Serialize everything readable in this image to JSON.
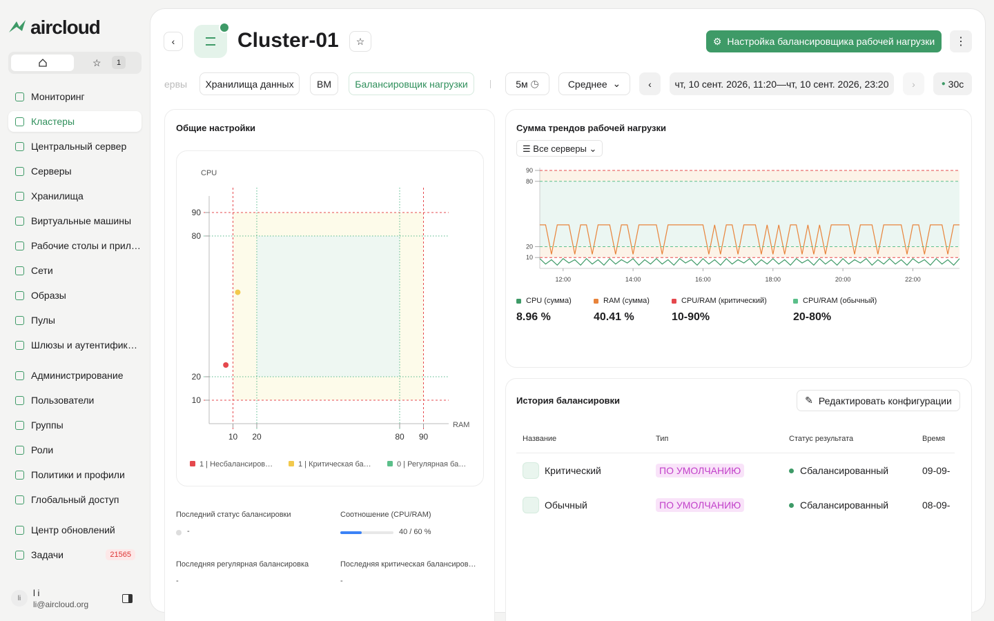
{
  "sidebar": {
    "logo": "aircloud",
    "favorites_count": 1,
    "nav": [
      [
        "Мониторинг",
        "Кластеры",
        "Центральный сервер",
        "Серверы",
        "Хранилища",
        "Виртуальные машины",
        "Рабочие столы и прил…",
        "Сети",
        "Образы",
        "Пулы",
        "Шлюзы и аутентифика…"
      ],
      [
        "Администрирование",
        "Пользователи",
        "Группы",
        "Роли",
        "Политики и профили",
        "Глобальный доступ"
      ],
      [
        "Центр обновлений",
        "Задачи"
      ]
    ],
    "active": "Кластеры",
    "tasks_badge": 21565,
    "user": {
      "avatar": "li",
      "name": "l i",
      "email": "li@aircloud.org"
    }
  },
  "header": {
    "title": "Cluster-01",
    "button": "Настройка балансировщика рабочей нагрузки"
  },
  "tabs": {
    "items": [
      "ервы",
      "Хранилища данных",
      "ВМ",
      "Балансировщик нагрузки"
    ],
    "active": "Балансировщик нагрузки"
  },
  "toolbar": {
    "interval": "5м",
    "aggregate": "Среднее",
    "range": "чт, 10 сент. 2026, 11:20—чт, 10 сент. 2026, 23:20",
    "refresh": "30с"
  },
  "general": {
    "title": "Общие настройки",
    "fields": [
      {
        "label": "Последний статус балансировки",
        "value": "-"
      },
      {
        "label": "Соотношение (CPU/RAM)",
        "value": "40 / 60 %",
        "ratio": 40
      },
      {
        "label": "Последняя регулярная балансировка",
        "value": "-"
      },
      {
        "label": "Последняя критическая балансиров…",
        "value": "-"
      }
    ]
  },
  "trend": {
    "title": "Сумма трендов рабочей нагрузки",
    "filter": "Все серверы"
  },
  "history": {
    "title": "История балансировки",
    "button": "Редактировать конфигурации",
    "columns": [
      "Название",
      "Тип",
      "Статус результата",
      "Время"
    ],
    "rows": [
      [
        "Критический",
        "ПО УМОЛЧАНИЮ",
        "Сбалансированный",
        "09-09-"
      ],
      [
        "Обычный",
        "ПО УМОЛЧАНИЮ",
        "Сбалансированный",
        "08-09-"
      ]
    ]
  },
  "chart_data": [
    {
      "type": "scatter",
      "ylabel": "CPU",
      "xlabel": "RAM",
      "xlim": [
        0,
        100
      ],
      "ylim": [
        0,
        100
      ],
      "xticks": [
        10,
        20,
        80,
        90
      ],
      "yticks": [
        10,
        20,
        80,
        90
      ],
      "thresholds": [
        {
          "range": [
            10,
            90
          ],
          "color": "#e5484d"
        },
        {
          "range": [
            20,
            80
          ],
          "color": "#52b788"
        }
      ],
      "series": [
        {
          "name": "1 | Несбалансиров…",
          "color": "#e5484d",
          "x": [
            7
          ],
          "values": [
            25
          ]
        },
        {
          "name": "1 | Критическая ба…",
          "color": "#f2c94c",
          "x": [
            12
          ],
          "values": [
            56
          ]
        },
        {
          "name": "0 | Регулярная ба…",
          "color": "#5bbf8a",
          "x": [],
          "values": []
        }
      ]
    },
    {
      "type": "line",
      "xlim": [
        680,
        1400
      ],
      "ylim": [
        0,
        90
      ],
      "yticks": [
        10,
        20,
        80,
        90
      ],
      "xticks": [
        {
          "value": 720,
          "label": "12:00"
        },
        {
          "value": 840,
          "label": "14:00"
        },
        {
          "value": 960,
          "label": "16:00"
        },
        {
          "value": 1080,
          "label": "18:00"
        },
        {
          "value": 1200,
          "label": "20:00"
        },
        {
          "value": 1320,
          "label": "22:00"
        }
      ],
      "x": [
        680,
        690,
        700,
        710,
        720,
        730,
        740,
        750,
        760,
        770,
        780,
        790,
        800,
        810,
        820,
        830,
        840,
        850,
        860,
        870,
        880,
        890,
        900,
        910,
        920,
        930,
        940,
        950,
        960,
        970,
        980,
        990,
        1000,
        1010,
        1020,
        1030,
        1040,
        1050,
        1060,
        1070,
        1080,
        1090,
        1100,
        1110,
        1120,
        1130,
        1140,
        1150,
        1160,
        1170,
        1180,
        1190,
        1200,
        1210,
        1220,
        1230,
        1240,
        1250,
        1260,
        1270,
        1280,
        1290,
        1300,
        1310,
        1320,
        1330,
        1340,
        1350,
        1360,
        1370,
        1380,
        1390,
        1400
      ],
      "series": [
        {
          "name": "CPU (сумма)",
          "color": "#3e9a67",
          "value": 8.96,
          "value_label": "8.96 %",
          "values": [
            9,
            4,
            8,
            3,
            9,
            5,
            8,
            3,
            9,
            4,
            8,
            3,
            9,
            4,
            8,
            5,
            9,
            3,
            8,
            4,
            9,
            4,
            8,
            3,
            9,
            5,
            8,
            3,
            9,
            4,
            8,
            3,
            9,
            4,
            8,
            5,
            9,
            3,
            8,
            4,
            9,
            4,
            8,
            3,
            9,
            5,
            8,
            3,
            9,
            4,
            8,
            3,
            9,
            4,
            8,
            5,
            9,
            3,
            8,
            4,
            9,
            4,
            8,
            3,
            9,
            5,
            8,
            3,
            9,
            4,
            8,
            3,
            9
          ]
        },
        {
          "name": "RAM (сумма)",
          "color": "#e8833a",
          "value": 40.41,
          "value_label": "40.41 %",
          "values": [
            40,
            40,
            13,
            40,
            40,
            40,
            13,
            40,
            40,
            13,
            40,
            40,
            40,
            13,
            40,
            40,
            13,
            40,
            40,
            40,
            40,
            13,
            40,
            40,
            40,
            40,
            40,
            40,
            40,
            13,
            40,
            13,
            40,
            40,
            13,
            40,
            40,
            40,
            13,
            40,
            13,
            40,
            13,
            40,
            40,
            13,
            40,
            13,
            40,
            13,
            40,
            40,
            40,
            40,
            13,
            40,
            40,
            40,
            13,
            40,
            40,
            40,
            40,
            13,
            40,
            40,
            13,
            40,
            40,
            40,
            13,
            40,
            40
          ]
        }
      ],
      "thresholds": [
        {
          "name": "CPU/RAM (критический)",
          "color": "#e5484d",
          "range": [
            10,
            90
          ],
          "label": "10-90%",
          "fill": "#fcf3e8"
        },
        {
          "name": "CPU/RAM (обычный)",
          "color": "#5bbf8a",
          "range": [
            20,
            80
          ],
          "label": "20-80%",
          "fill": "#ebf6f2"
        }
      ]
    }
  ]
}
